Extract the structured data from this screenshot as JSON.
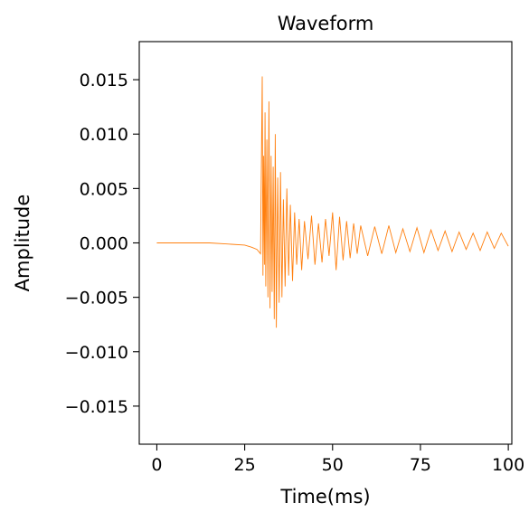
{
  "chart_data": {
    "type": "line",
    "title": "Waveform",
    "xlabel": "Time(ms)",
    "ylabel": "Amplitude",
    "xlim": [
      -5,
      101
    ],
    "ylim": [
      -0.0185,
      0.0185
    ],
    "xticks": [
      0,
      25,
      50,
      75,
      100
    ],
    "xtick_labels": [
      "0",
      "25",
      "50",
      "75",
      "100"
    ],
    "yticks": [
      0.015,
      0.01,
      0.005,
      0.0,
      -0.005,
      -0.01,
      -0.015
    ],
    "ytick_labels": [
      "0.015",
      "0.010",
      "0.005",
      "0.000",
      "−0.005",
      "−0.010",
      "−0.015"
    ],
    "grid": false,
    "legend": "none",
    "series": [
      {
        "color": "#ff7f0e",
        "x": [
          0,
          5,
          10,
          15,
          20,
          25,
          27,
          28.5,
          29.5,
          30.0,
          30.2,
          30.4,
          30.6,
          30.8,
          31.0,
          31.3,
          31.6,
          31.9,
          32.2,
          32.5,
          32.8,
          33.1,
          33.4,
          33.7,
          34.0,
          34.4,
          34.8,
          35.2,
          35.6,
          36.0,
          36.5,
          37.0,
          37.5,
          38.0,
          38.6,
          39.2,
          39.8,
          40.5,
          41.2,
          42.0,
          43.0,
          44.0,
          45.0,
          46.0,
          47.0,
          48.0,
          49.0,
          50.0,
          51.0,
          52.0,
          53.0,
          54.0,
          55.0,
          56.0,
          57.0,
          58.0,
          60.0,
          62.0,
          64.0,
          66.0,
          68.0,
          70.0,
          72.0,
          74.0,
          76.0,
          78.0,
          80.0,
          82.0,
          84.0,
          86.0,
          88.0,
          90.0,
          92.0,
          94.0,
          96.0,
          98.0,
          100.0
        ],
        "y": [
          0.0,
          0.0,
          0.0,
          0.0,
          -0.0001,
          -0.0002,
          -0.0004,
          -0.0006,
          -0.001,
          0.0153,
          -0.003,
          0.008,
          -0.002,
          0.012,
          -0.004,
          0.0095,
          -0.005,
          0.013,
          -0.006,
          0.008,
          -0.0045,
          0.007,
          -0.007,
          0.01,
          -0.0078,
          0.006,
          -0.0055,
          0.0065,
          -0.005,
          0.004,
          -0.004,
          0.005,
          -0.003,
          0.0035,
          -0.0035,
          0.0028,
          -0.002,
          0.0022,
          -0.0025,
          0.002,
          -0.0015,
          0.0025,
          -0.002,
          0.0018,
          -0.0018,
          0.0022,
          -0.0012,
          0.0028,
          -0.0025,
          0.0024,
          -0.0016,
          0.002,
          -0.0014,
          0.0018,
          -0.001,
          0.0016,
          -0.0012,
          0.0015,
          -0.001,
          0.0016,
          -0.0009,
          0.0013,
          -0.0008,
          0.0014,
          -0.0009,
          0.0012,
          -0.0007,
          0.0011,
          -0.0008,
          0.001,
          -0.0006,
          0.0009,
          -0.0007,
          0.001,
          -0.0005,
          0.0009,
          -0.0003
        ]
      }
    ]
  }
}
